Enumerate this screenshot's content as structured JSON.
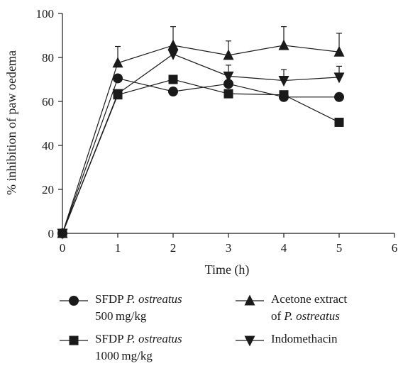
{
  "chart_data": {
    "type": "line",
    "title": "",
    "xlabel": "Time (h)",
    "ylabel": "% inhibition of paw oedema",
    "xlim": [
      0,
      6
    ],
    "ylim": [
      0,
      100
    ],
    "xticks": [
      0,
      1,
      2,
      3,
      4,
      5,
      6
    ],
    "yticks": [
      0,
      20,
      40,
      60,
      80,
      100
    ],
    "grid": false,
    "legend_position": "bottom",
    "x": [
      0,
      1,
      2,
      3,
      4,
      5
    ],
    "series": [
      {
        "marker": "circle",
        "values": [
          0,
          70.5,
          64.5,
          68,
          62,
          62
        ],
        "error": [
          0,
          0,
          0,
          0,
          0,
          0
        ],
        "legend": {
          "line1_plain": "SFDP ",
          "line1_italic": "P. ostreatus",
          "line2_plain": "500 mg/kg",
          "line2_italic": ""
        }
      },
      {
        "marker": "square",
        "values": [
          0,
          63,
          70,
          63.5,
          63,
          50.5
        ],
        "error": [
          0,
          0,
          0,
          0,
          0,
          0
        ],
        "legend": {
          "line1_plain": "SFDP ",
          "line1_italic": "P. ostreatus",
          "line2_plain": "1000 mg/kg",
          "line2_italic": ""
        }
      },
      {
        "marker": "triangle-up",
        "values": [
          0,
          77.5,
          85.5,
          81,
          85.5,
          82.5
        ],
        "error": [
          0,
          7.5,
          8.5,
          6.5,
          8.5,
          8.5
        ],
        "legend": {
          "line1_plain": "Acetone extract",
          "line1_italic": "",
          "line2_plain": "of ",
          "line2_italic": "P. ostreatus"
        }
      },
      {
        "marker": "triangle-down",
        "values": [
          0,
          63.5,
          81.5,
          71.5,
          69.5,
          71
        ],
        "error": [
          0,
          0,
          0,
          5,
          5,
          5
        ],
        "legend": {
          "line1_plain": "Indomethacin",
          "line1_italic": "",
          "line2_plain": "",
          "line2_italic": ""
        }
      }
    ]
  }
}
